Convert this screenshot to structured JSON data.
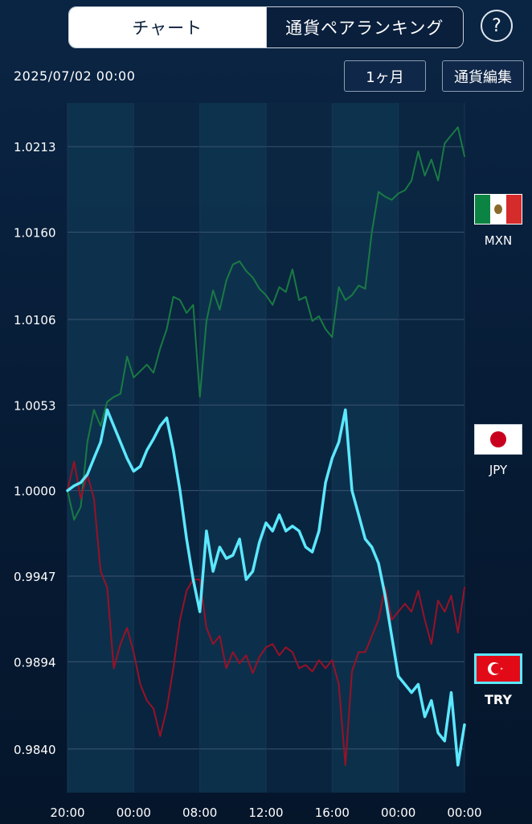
{
  "tabs": [
    {
      "label": "チャート",
      "active": true
    },
    {
      "label": "通貨ペアランキング",
      "active": false
    }
  ],
  "help_label": "?",
  "datetime": "2025/07/02 00:00",
  "period_button": "1ヶ月",
  "edit_button": "通貨編集",
  "currencies": [
    {
      "code": "MXN",
      "icon": "mexico-flag-icon",
      "color": "#1a7a44"
    },
    {
      "code": "JPY",
      "icon": "japan-flag-icon",
      "color": "#9a1127"
    },
    {
      "code": "TRY",
      "icon": "turkey-flag-icon",
      "color": "#5ce8ff",
      "selected": true
    }
  ],
  "colors": {
    "accent": "#5ce8ff",
    "background": "#061a33",
    "grid": "#3a5270"
  },
  "chart_data": {
    "type": "line",
    "x_tick_labels": [
      "20:00",
      "00:00",
      "08:00",
      "12:00",
      "16:00",
      "00:00",
      "00:00"
    ],
    "y_tick_labels": [
      "1.0213",
      "1.0160",
      "1.0106",
      "1.0053",
      "1.0000",
      "0.9947",
      "0.9894",
      "0.9840"
    ],
    "ylim": [
      0.9813,
      1.024
    ],
    "xlim": [
      0,
      60
    ],
    "grid": true,
    "series": [
      {
        "name": "MXN",
        "x": [
          0,
          1,
          2,
          3,
          4,
          5,
          6,
          7,
          8,
          9,
          10,
          11,
          12,
          13,
          14,
          15,
          16,
          17,
          18,
          19,
          20,
          21,
          22,
          23,
          24,
          25,
          26,
          27,
          28,
          29,
          30,
          31,
          32,
          33,
          34,
          35,
          36,
          37,
          38,
          39,
          40,
          41,
          42,
          43,
          44,
          45,
          46,
          47,
          48,
          49,
          50,
          51,
          52,
          53,
          54,
          55,
          56,
          57,
          58,
          59,
          60
        ],
        "y": [
          1.0,
          0.9982,
          0.999,
          1.003,
          1.005,
          1.004,
          1.0055,
          1.0058,
          1.006,
          1.0083,
          1.007,
          1.0074,
          1.0078,
          1.0073,
          1.0088,
          1.01,
          1.012,
          1.0118,
          1.011,
          1.0115,
          1.0058,
          1.0105,
          1.0124,
          1.0112,
          1.013,
          1.014,
          1.0142,
          1.0136,
          1.0132,
          1.0125,
          1.0121,
          1.0115,
          1.0126,
          1.0123,
          1.0137,
          1.0118,
          1.012,
          1.0105,
          1.0108,
          1.01,
          1.0095,
          1.0126,
          1.0118,
          1.0121,
          1.0127,
          1.0125,
          1.016,
          1.0185,
          1.0182,
          1.018,
          1.0184,
          1.0186,
          1.0192,
          1.021,
          1.0195,
          1.0205,
          1.0192,
          1.0215,
          1.022,
          1.0225,
          1.0207
        ]
      },
      {
        "name": "JPY",
        "x": [
          0,
          1,
          2,
          3,
          4,
          5,
          6,
          7,
          8,
          9,
          10,
          11,
          12,
          13,
          14,
          15,
          16,
          17,
          18,
          19,
          20,
          21,
          22,
          23,
          24,
          25,
          26,
          27,
          28,
          29,
          30,
          31,
          32,
          33,
          34,
          35,
          36,
          37,
          38,
          39,
          40,
          41,
          42,
          43,
          44,
          45,
          46,
          47,
          48,
          49,
          50,
          51,
          52,
          53,
          54,
          55,
          56,
          57,
          58,
          59,
          60
        ],
        "y": [
          1.0,
          1.0018,
          0.9995,
          1.001,
          0.9995,
          0.995,
          0.994,
          0.989,
          0.9905,
          0.9915,
          0.99,
          0.988,
          0.987,
          0.9865,
          0.9848,
          0.9865,
          0.989,
          0.992,
          0.9938,
          0.9945,
          0.9945,
          0.9915,
          0.9905,
          0.991,
          0.989,
          0.99,
          0.9893,
          0.9898,
          0.9887,
          0.9897,
          0.9903,
          0.9905,
          0.9898,
          0.9903,
          0.99,
          0.989,
          0.9892,
          0.9888,
          0.9895,
          0.989,
          0.9895,
          0.988,
          0.983,
          0.9888,
          0.99,
          0.99,
          0.991,
          0.992,
          0.994,
          0.992,
          0.9925,
          0.993,
          0.9925,
          0.9938,
          0.992,
          0.9905,
          0.9932,
          0.9925,
          0.9935,
          0.9912,
          0.994
        ]
      },
      {
        "name": "TRY",
        "x": [
          0,
          1,
          2,
          3,
          4,
          5,
          6,
          7,
          8,
          9,
          10,
          11,
          12,
          13,
          14,
          15,
          16,
          17,
          18,
          19,
          20,
          21,
          22,
          23,
          24,
          25,
          26,
          27,
          28,
          29,
          30,
          31,
          32,
          33,
          34,
          35,
          36,
          37,
          38,
          39,
          40,
          41,
          42,
          43,
          44,
          45,
          46,
          47,
          48,
          49,
          50,
          51,
          52,
          53,
          54,
          55,
          56,
          57,
          58,
          59,
          60
        ],
        "y": [
          1.0,
          1.0003,
          1.0005,
          1.001,
          1.002,
          1.003,
          1.005,
          1.004,
          1.003,
          1.002,
          1.0012,
          1.0015,
          1.0025,
          1.0032,
          1.004,
          1.0045,
          1.0025,
          1.0,
          0.997,
          0.9945,
          0.9925,
          0.9975,
          0.995,
          0.9965,
          0.9958,
          0.996,
          0.997,
          0.9945,
          0.995,
          0.9968,
          0.998,
          0.9975,
          0.9985,
          0.9975,
          0.9978,
          0.9975,
          0.9965,
          0.9962,
          0.9975,
          1.0005,
          1.002,
          1.003,
          1.005,
          1.0,
          0.9985,
          0.997,
          0.9965,
          0.9955,
          0.9935,
          0.991,
          0.9885,
          0.988,
          0.9875,
          0.988,
          0.986,
          0.987,
          0.985,
          0.9845,
          0.9875,
          0.983,
          0.9855
        ]
      }
    ]
  }
}
